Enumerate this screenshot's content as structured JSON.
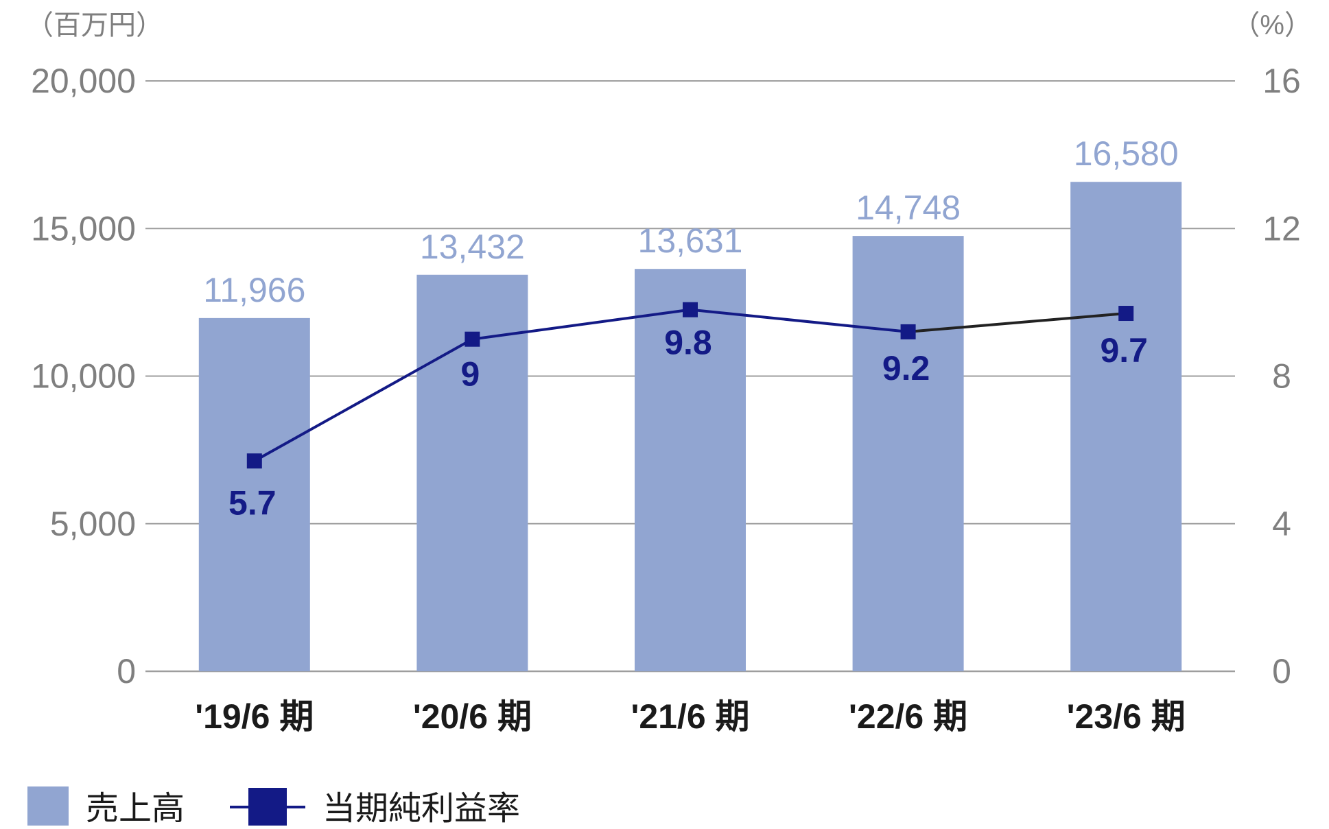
{
  "chart_data": {
    "type": "bar",
    "left_unit": "（百万円）",
    "right_unit": "（%）",
    "categories": [
      "'19/6 期",
      "'20/6 期",
      "'21/6 期",
      "'22/6 期",
      "'23/6 期"
    ],
    "series": [
      {
        "name": "売上高",
        "type": "bar",
        "axis": "left",
        "values": [
          11966,
          13432,
          13631,
          14748,
          16580
        ],
        "labels": [
          "11,966",
          "13,432",
          "13,631",
          "14,748",
          "16,580"
        ],
        "color": "#91a5d1"
      },
      {
        "name": "当期純利益率",
        "type": "line",
        "axis": "right",
        "values": [
          5.7,
          9,
          9.8,
          9.2,
          9.7
        ],
        "labels": [
          "5.7",
          "9",
          "9.8",
          "9.2",
          "9.7"
        ],
        "color": "#131a86"
      }
    ],
    "left_axis": {
      "ylim": [
        0,
        20000
      ],
      "ticks": [
        "0",
        "5,000",
        "10,000",
        "15,000",
        "20,000"
      ]
    },
    "right_axis": {
      "ylim": [
        0,
        16
      ],
      "ticks": [
        "0",
        "4",
        "8",
        "12",
        "16"
      ]
    },
    "grid": true,
    "legend": "bottom-left"
  },
  "colors": {
    "gridline": "#9e9e9e",
    "last_segment": "#222222"
  }
}
